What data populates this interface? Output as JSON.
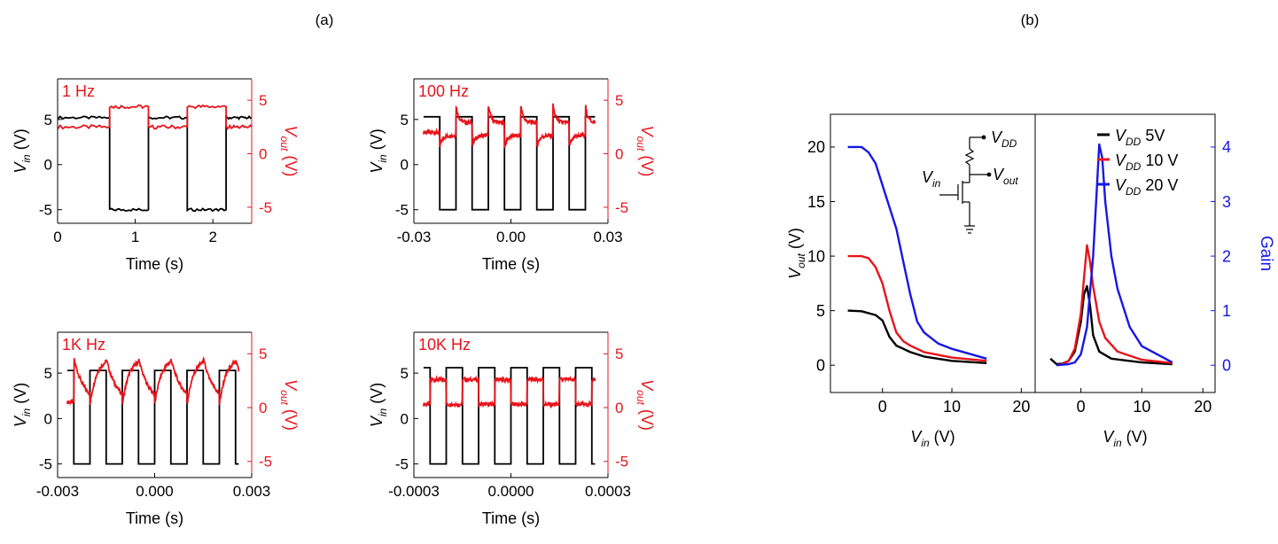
{
  "colors": {
    "black": "#000000",
    "red": "#e8141b",
    "blue": "#1717e6"
  },
  "panel_labels": {
    "a": "(a)",
    "b": "(b)"
  },
  "chart_data": [
    {
      "id": "a1",
      "type": "line",
      "annotation": "1 Hz",
      "xlabel": "Time (s)",
      "ylabel_left": "V_in (V)",
      "ylabel_right": "V_out (V)",
      "xlim": [
        0,
        2.5
      ],
      "ylim_left": [
        -6.5,
        9.5
      ],
      "ylim_right": [
        -6.5,
        7.0
      ],
      "x_ticks": [
        0,
        1,
        2
      ],
      "x_tick_labels": [
        "0",
        "1",
        "2"
      ],
      "y_ticks_left": [
        -5,
        0,
        5
      ],
      "y_tick_labels_left": [
        "-5",
        "0",
        "5"
      ],
      "y_ticks_right": [
        -5,
        0,
        5
      ],
      "y_tick_labels_right": [
        "-5",
        "0",
        "5"
      ],
      "series": [
        {
          "axis": "left",
          "color": "black",
          "x": [
            0,
            0.67,
            0.67,
            1.17,
            1.17,
            1.67,
            1.67,
            2.17,
            2.17,
            2.5
          ],
          "y": [
            5.2,
            5.2,
            -5,
            -5,
            5.2,
            5.2,
            -5,
            -5,
            5.2,
            5.2
          ]
        },
        {
          "axis": "right",
          "color": "red",
          "x": [
            0,
            0.67,
            0.67,
            1.17,
            1.17,
            1.67,
            1.67,
            2.17,
            2.17,
            2.5
          ],
          "y": [
            2.5,
            2.5,
            4.4,
            4.4,
            2.5,
            2.5,
            4.4,
            4.4,
            2.5,
            2.5
          ]
        }
      ]
    },
    {
      "id": "a2",
      "type": "line",
      "annotation": "100 Hz",
      "xlabel": "Time (s)",
      "ylabel_left": "V_in (V)",
      "ylabel_right": "V_out (V)",
      "xlim": [
        -0.03,
        0.03
      ],
      "ylim_left": [
        -6.5,
        9.5
      ],
      "ylim_right": [
        -6.5,
        7.0
      ],
      "x_ticks": [
        -0.03,
        0.0,
        0.03
      ],
      "x_tick_labels": [
        "-0.03",
        "0.00",
        "0.03"
      ],
      "y_ticks_left": [
        -5,
        0,
        5
      ],
      "y_tick_labels_left": [
        "-5",
        "0",
        "5"
      ],
      "y_ticks_right": [
        -5,
        0,
        5
      ],
      "y_tick_labels_right": [
        "-5",
        "0",
        "5"
      ],
      "square": {
        "start": -0.027,
        "end": 0.026,
        "period": 0.01,
        "first_edge": -0.022,
        "high": 5.3,
        "low": -5
      },
      "response": {
        "type": "spike",
        "base": 2.0,
        "low_level": 1.7,
        "high_level": 2.9,
        "peak": 4.6,
        "trough": 0.6,
        "tau": 0.0008
      }
    },
    {
      "id": "a3",
      "type": "line",
      "annotation": "1K Hz",
      "xlabel": "Time (s)",
      "ylabel_left": "V_in (V)",
      "ylabel_right": "V_out (V)",
      "xlim": [
        -0.003,
        0.003
      ],
      "ylim_left": [
        -6.5,
        9.5
      ],
      "ylim_right": [
        -6.5,
        7.0
      ],
      "x_ticks": [
        -0.003,
        0.0,
        0.003
      ],
      "x_tick_labels": [
        "-0.003",
        "0.000",
        "0.003"
      ],
      "y_ticks_left": [
        -5,
        0,
        5
      ],
      "y_tick_labels_left": [
        "-5",
        "0",
        "5"
      ],
      "y_ticks_right": [
        -5,
        0,
        5
      ],
      "y_tick_labels_right": [
        "-5",
        "0",
        "5"
      ],
      "square": {
        "start": -0.0027,
        "end": 0.0026,
        "period": 0.001,
        "first_edge": -0.0025,
        "high": 5.3,
        "low": -5
      },
      "response": {
        "type": "sawtooth",
        "base": 0.5,
        "low_level": 0.2,
        "high_level": 4.6,
        "peak": 4.6,
        "trough": 0.2,
        "tau": 0.0002
      }
    },
    {
      "id": "a4",
      "type": "line",
      "annotation": "10K Hz",
      "xlabel": "Time (s)",
      "ylabel_left": "V_in (V)",
      "ylabel_right": "V_out (V)",
      "xlim": [
        -0.0003,
        0.0003
      ],
      "ylim_left": [
        -6.5,
        9.5
      ],
      "ylim_right": [
        -6.5,
        7.0
      ],
      "x_ticks": [
        -0.0003,
        0.0,
        0.0003
      ],
      "x_tick_labels": [
        "-0.0003",
        "0.0000",
        "0.0003"
      ],
      "y_ticks_left": [
        -5,
        0,
        5
      ],
      "y_tick_labels_left": [
        "-5",
        "0",
        "5"
      ],
      "y_ticks_right": [
        -5,
        0,
        5
      ],
      "y_tick_labels_right": [
        "-5",
        "0",
        "5"
      ],
      "square": {
        "start": -0.00027,
        "end": 0.00026,
        "period": 0.0001,
        "first_edge": -0.00025,
        "high": 5.6,
        "low": -5
      },
      "response": {
        "type": "square",
        "base": 0.3,
        "low_level": 0.3,
        "high_level": 2.6,
        "peak": 2.6,
        "trough": 0.3,
        "tau": 0.0
      }
    },
    {
      "id": "b_left",
      "type": "line",
      "xlabel": "V_in (V)",
      "ylabel": "V_out (V)",
      "xlim": [
        -7.5,
        22
      ],
      "ylim": [
        -2.5,
        23
      ],
      "x_ticks": [
        0,
        10,
        20
      ],
      "x_tick_labels": [
        "0",
        "10",
        "20"
      ],
      "y_ticks": [
        0,
        5,
        10,
        15,
        20
      ],
      "y_tick_labels": [
        "0",
        "5",
        "10",
        "15",
        "20"
      ],
      "series": [
        {
          "name": "V_DD 5V",
          "color": "black",
          "x": [
            -5,
            -3,
            -1,
            0,
            1,
            2,
            4,
            6,
            10,
            15
          ],
          "y": [
            5.0,
            4.95,
            4.6,
            4.1,
            2.6,
            1.8,
            1.2,
            0.8,
            0.4,
            0.2
          ]
        },
        {
          "name": "V_DD 10 V",
          "color": "red",
          "x": [
            -5,
            -3,
            -2,
            -1,
            0,
            1,
            2,
            3,
            4,
            6,
            10,
            15
          ],
          "y": [
            10,
            10,
            9.8,
            9.0,
            7.5,
            5.0,
            3.0,
            2.2,
            1.8,
            1.2,
            0.7,
            0.4
          ]
        },
        {
          "name": "V_DD 20 V",
          "color": "blue",
          "x": [
            -5,
            -3,
            -2,
            -1,
            0,
            1,
            2,
            3,
            4,
            5,
            6,
            8,
            10,
            15
          ],
          "y": [
            20,
            20,
            19.5,
            18.5,
            16.5,
            14.5,
            12.5,
            9.5,
            6.5,
            4.0,
            3.0,
            2.0,
            1.5,
            0.6
          ]
        }
      ],
      "inset_labels": {
        "vdd": "V_DD",
        "vin": "V_in",
        "vout": "V_out"
      }
    },
    {
      "id": "b_right",
      "type": "line",
      "xlabel": "V_in (V)",
      "ylabel": "Gain",
      "xlim": [
        -7.5,
        22
      ],
      "ylim": [
        -0.5,
        4.6
      ],
      "x_ticks": [
        0,
        10,
        20
      ],
      "x_tick_labels": [
        "0",
        "10",
        "20"
      ],
      "y_ticks": [
        0,
        1,
        2,
        3,
        4
      ],
      "y_tick_labels": [
        "0",
        "1",
        "2",
        "3",
        "4"
      ],
      "legend": {
        "position": "top-right"
      },
      "series": [
        {
          "name": "V_DD 5V",
          "color": "black",
          "x": [
            -5,
            -4,
            -3,
            -2,
            -1,
            0,
            0.5,
            1,
            1.5,
            2,
            3,
            5,
            10,
            15
          ],
          "y": [
            0.12,
            0.02,
            0.03,
            0.08,
            0.25,
            0.8,
            1.3,
            1.45,
            1.1,
            0.55,
            0.25,
            0.12,
            0.05,
            0.02
          ]
        },
        {
          "name": "V_DD 10 V",
          "color": "red",
          "x": [
            -4,
            -3,
            -2,
            -1,
            0,
            0.5,
            1,
            1.5,
            2,
            3,
            4,
            6,
            10,
            15
          ],
          "y": [
            0,
            0.02,
            0.08,
            0.3,
            0.95,
            1.6,
            2.2,
            1.9,
            1.45,
            0.8,
            0.5,
            0.25,
            0.1,
            0.04
          ]
        },
        {
          "name": "V_DD 20 V",
          "color": "blue",
          "x": [
            -4,
            -2,
            -1,
            0,
            1,
            2,
            2.5,
            3,
            3.5,
            4,
            5,
            6,
            8,
            10,
            15
          ],
          "y": [
            0,
            0.02,
            0.05,
            0.2,
            0.7,
            2.0,
            3.0,
            4.05,
            3.8,
            3.0,
            2.0,
            1.4,
            0.7,
            0.35,
            0.05
          ]
        }
      ]
    }
  ]
}
